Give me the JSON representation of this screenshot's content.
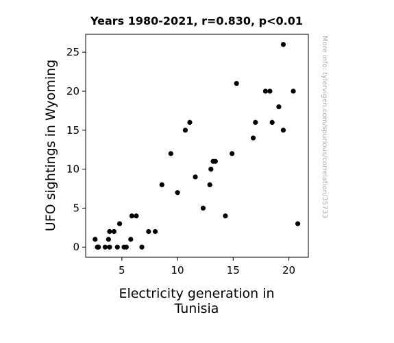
{
  "chart_data": {
    "type": "scatter",
    "title": "Years 1980-2021, r=0.830, p<0.01",
    "xlabel_lines": [
      "Electricity generation in",
      "Tunisia"
    ],
    "ylabel": "UFO sightings in Wyoming",
    "watermark": "More info: tylervigen.com/spurious/correlation/35733",
    "xlim": [
      1.75,
      21.75
    ],
    "ylim": [
      -1.3,
      27.3
    ],
    "xticks": [
      5,
      10,
      15,
      20
    ],
    "yticks": [
      0,
      5,
      10,
      15,
      20,
      25
    ],
    "grid": false,
    "marker_color": "#000000",
    "points": [
      {
        "x": 2.6,
        "y": 1
      },
      {
        "x": 2.8,
        "y": 0
      },
      {
        "x": 2.9,
        "y": 0
      },
      {
        "x": 3.5,
        "y": 0
      },
      {
        "x": 3.8,
        "y": 1
      },
      {
        "x": 3.9,
        "y": 2
      },
      {
        "x": 3.9,
        "y": 0
      },
      {
        "x": 4.3,
        "y": 2
      },
      {
        "x": 4.6,
        "y": 0
      },
      {
        "x": 4.8,
        "y": 3
      },
      {
        "x": 5.2,
        "y": 0
      },
      {
        "x": 5.4,
        "y": 0
      },
      {
        "x": 5.8,
        "y": 1
      },
      {
        "x": 5.9,
        "y": 4
      },
      {
        "x": 6.3,
        "y": 4
      },
      {
        "x": 6.8,
        "y": 0
      },
      {
        "x": 7.4,
        "y": 2
      },
      {
        "x": 8.0,
        "y": 2
      },
      {
        "x": 8.6,
        "y": 8
      },
      {
        "x": 9.4,
        "y": 12
      },
      {
        "x": 10.0,
        "y": 7
      },
      {
        "x": 10.7,
        "y": 15
      },
      {
        "x": 11.1,
        "y": 16
      },
      {
        "x": 11.6,
        "y": 9
      },
      {
        "x": 12.3,
        "y": 5
      },
      {
        "x": 12.9,
        "y": 8
      },
      {
        "x": 13.0,
        "y": 10
      },
      {
        "x": 13.2,
        "y": 11
      },
      {
        "x": 13.4,
        "y": 11
      },
      {
        "x": 14.3,
        "y": 4
      },
      {
        "x": 14.9,
        "y": 12
      },
      {
        "x": 15.3,
        "y": 21
      },
      {
        "x": 16.8,
        "y": 14
      },
      {
        "x": 17.0,
        "y": 16
      },
      {
        "x": 17.9,
        "y": 20
      },
      {
        "x": 18.3,
        "y": 20
      },
      {
        "x": 18.5,
        "y": 16
      },
      {
        "x": 19.1,
        "y": 18
      },
      {
        "x": 19.5,
        "y": 26
      },
      {
        "x": 19.5,
        "y": 15
      },
      {
        "x": 20.4,
        "y": 20
      },
      {
        "x": 20.8,
        "y": 3
      }
    ]
  }
}
